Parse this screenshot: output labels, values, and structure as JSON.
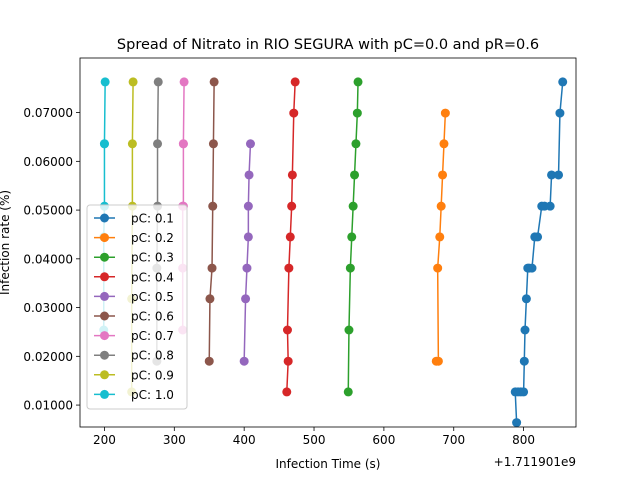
{
  "chart_data": {
    "type": "line",
    "title": "Spread of Nitrato in RIO SEGURA with pC=0.0 and pR=0.6",
    "xlabel": "Infection Time (s)",
    "ylabel": "Infection rate (%)",
    "x_offset_label": "+1.711901e9",
    "xlim": [
      165,
      875
    ],
    "ylim": [
      0.0055,
      0.0812
    ],
    "x_ticks": [
      200,
      300,
      400,
      500,
      600,
      700,
      800
    ],
    "y_ticks": [
      0.01,
      0.02,
      0.03,
      0.04,
      0.05,
      0.06,
      0.07
    ],
    "x_tick_labels": [
      "200",
      "300",
      "400",
      "500",
      "600",
      "700",
      "800"
    ],
    "y_tick_labels": [
      "0.01000",
      "0.02000",
      "0.03000",
      "0.04000",
      "0.05000",
      "0.06000",
      "0.07000"
    ],
    "grid": false,
    "legend_position": "lower-left",
    "series": [
      {
        "name": "pC: 0.1",
        "color": "#1f77b4",
        "x": [
          790,
          788,
          792,
          796,
          800,
          801,
          802,
          804,
          806,
          808,
          812,
          816,
          820,
          826,
          830,
          838,
          840,
          850,
          852,
          856
        ],
        "y": [
          0.0064,
          0.0127,
          0.0127,
          0.0127,
          0.0127,
          0.019,
          0.0254,
          0.0318,
          0.0381,
          0.0381,
          0.0381,
          0.0445,
          0.0445,
          0.0508,
          0.0508,
          0.0508,
          0.0572,
          0.0572,
          0.0699,
          0.0763
        ]
      },
      {
        "name": "pC: 0.2",
        "color": "#ff7f0e",
        "x": [
          675,
          678,
          677,
          680,
          682,
          684,
          686,
          688
        ],
        "y": [
          0.019,
          0.019,
          0.0381,
          0.0445,
          0.0508,
          0.0572,
          0.0636,
          0.0699
        ]
      },
      {
        "name": "pC: 0.3",
        "color": "#2ca02c",
        "x": [
          549,
          550,
          552,
          554,
          556,
          558,
          560,
          562,
          563
        ],
        "y": [
          0.0127,
          0.0254,
          0.0381,
          0.0445,
          0.0508,
          0.0572,
          0.0636,
          0.0699,
          0.0763
        ]
      },
      {
        "name": "pC: 0.4",
        "color": "#d62728",
        "x": [
          461,
          463,
          462,
          464,
          466,
          468,
          469,
          471,
          473
        ],
        "y": [
          0.0127,
          0.019,
          0.0254,
          0.0381,
          0.0445,
          0.0508,
          0.0572,
          0.0699,
          0.0763
        ]
      },
      {
        "name": "pC: 0.5",
        "color": "#9467bd",
        "x": [
          400,
          402,
          404,
          406,
          406,
          407,
          409
        ],
        "y": [
          0.019,
          0.0318,
          0.0381,
          0.0445,
          0.0508,
          0.0572,
          0.0636
        ]
      },
      {
        "name": "pC: 0.6",
        "color": "#8c564b",
        "x": [
          350,
          351,
          354,
          355,
          356,
          357
        ],
        "y": [
          0.019,
          0.0318,
          0.0381,
          0.0508,
          0.0636,
          0.0763
        ]
      },
      {
        "name": "pC: 0.7",
        "color": "#e377c2",
        "x": [
          312,
          312,
          312,
          313,
          313,
          313,
          314
        ],
        "y": [
          0.0254,
          0.0381,
          0.0508,
          0.0508,
          0.0636,
          0.0636,
          0.0763
        ]
      },
      {
        "name": "pC: 0.8",
        "color": "#7f7f7f",
        "x": [
          275,
          275,
          276,
          276,
          277
        ],
        "y": [
          0.019,
          0.0381,
          0.0508,
          0.0636,
          0.0763
        ]
      },
      {
        "name": "pC: 0.9",
        "color": "#bcbd22",
        "x": [
          239,
          239,
          240,
          240,
          241
        ],
        "y": [
          0.0127,
          0.0318,
          0.0508,
          0.0636,
          0.0763
        ]
      },
      {
        "name": "pC: 1.0",
        "color": "#17becf",
        "x": [
          199,
          199,
          200,
          200,
          200,
          201
        ],
        "y": [
          0.0254,
          0.0445,
          0.0508,
          0.0636,
          0.0636,
          0.0763
        ]
      }
    ]
  }
}
